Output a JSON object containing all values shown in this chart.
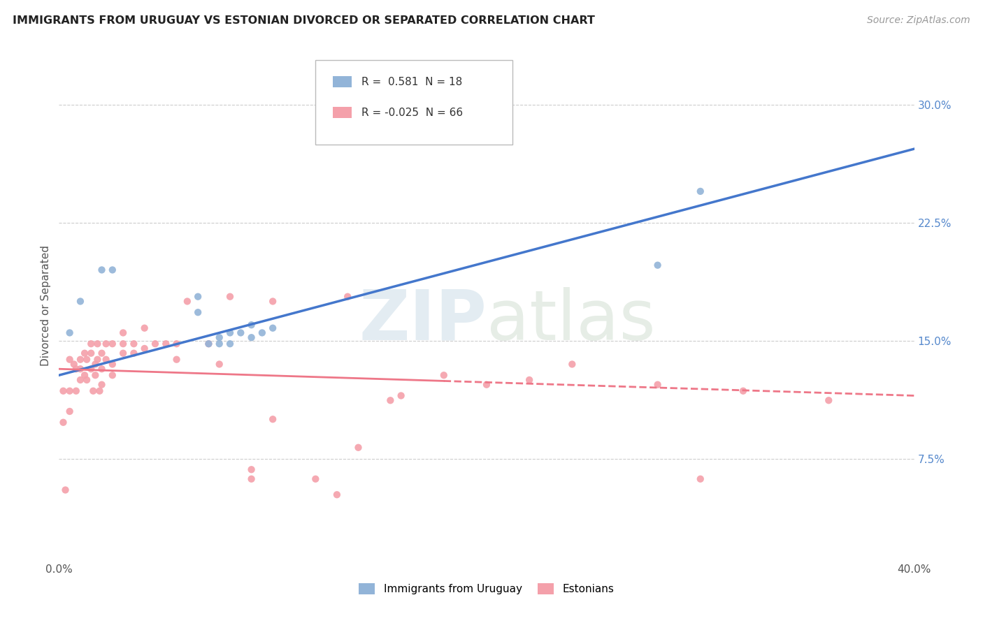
{
  "title": "IMMIGRANTS FROM URUGUAY VS ESTONIAN DIVORCED OR SEPARATED CORRELATION CHART",
  "source": "Source: ZipAtlas.com",
  "ylabel": "Divorced or Separated",
  "yticks": [
    "7.5%",
    "15.0%",
    "22.5%",
    "30.0%"
  ],
  "ytick_vals": [
    0.075,
    0.15,
    0.225,
    0.3
  ],
  "xmin": 0.0,
  "xmax": 0.4,
  "ymin": 0.01,
  "ymax": 0.335,
  "legend1_r": "0.581",
  "legend1_n": "18",
  "legend2_r": "-0.025",
  "legend2_n": "66",
  "blue_color": "#92B4D8",
  "pink_color": "#F4A0AA",
  "blue_line_color": "#4477CC",
  "pink_line_color": "#EE7788",
  "blue_line_x0": 0.0,
  "blue_line_y0": 0.128,
  "blue_line_x1": 0.4,
  "blue_line_y1": 0.272,
  "pink_line_x0": 0.0,
  "pink_line_y0": 0.132,
  "pink_line_x1": 0.4,
  "pink_line_y1": 0.115,
  "pink_line_solid_end": 0.18,
  "blue_points_x": [
    0.005,
    0.01,
    0.02,
    0.025,
    0.065,
    0.065,
    0.07,
    0.075,
    0.075,
    0.08,
    0.08,
    0.085,
    0.09,
    0.09,
    0.095,
    0.1,
    0.28,
    0.3
  ],
  "blue_points_y": [
    0.155,
    0.175,
    0.195,
    0.195,
    0.168,
    0.178,
    0.148,
    0.148,
    0.152,
    0.148,
    0.155,
    0.155,
    0.152,
    0.16,
    0.155,
    0.158,
    0.198,
    0.245
  ],
  "pink_points_x": [
    0.002,
    0.002,
    0.003,
    0.005,
    0.005,
    0.005,
    0.007,
    0.008,
    0.008,
    0.01,
    0.01,
    0.01,
    0.012,
    0.012,
    0.013,
    0.013,
    0.015,
    0.015,
    0.015,
    0.016,
    0.017,
    0.017,
    0.018,
    0.018,
    0.019,
    0.02,
    0.02,
    0.02,
    0.022,
    0.022,
    0.025,
    0.025,
    0.025,
    0.03,
    0.03,
    0.03,
    0.035,
    0.035,
    0.04,
    0.04,
    0.045,
    0.05,
    0.055,
    0.055,
    0.06,
    0.07,
    0.075,
    0.08,
    0.09,
    0.09,
    0.1,
    0.1,
    0.12,
    0.13,
    0.135,
    0.14,
    0.155,
    0.16,
    0.18,
    0.2,
    0.22,
    0.24,
    0.28,
    0.3,
    0.32,
    0.36
  ],
  "pink_points_y": [
    0.118,
    0.098,
    0.055,
    0.138,
    0.105,
    0.118,
    0.135,
    0.118,
    0.132,
    0.125,
    0.132,
    0.138,
    0.128,
    0.142,
    0.125,
    0.138,
    0.132,
    0.142,
    0.148,
    0.118,
    0.128,
    0.135,
    0.138,
    0.148,
    0.118,
    0.122,
    0.132,
    0.142,
    0.138,
    0.148,
    0.128,
    0.135,
    0.148,
    0.142,
    0.148,
    0.155,
    0.142,
    0.148,
    0.145,
    0.158,
    0.148,
    0.148,
    0.138,
    0.148,
    0.175,
    0.148,
    0.135,
    0.178,
    0.068,
    0.062,
    0.1,
    0.175,
    0.062,
    0.052,
    0.178,
    0.082,
    0.112,
    0.115,
    0.128,
    0.122,
    0.125,
    0.135,
    0.122,
    0.062,
    0.118,
    0.112
  ]
}
